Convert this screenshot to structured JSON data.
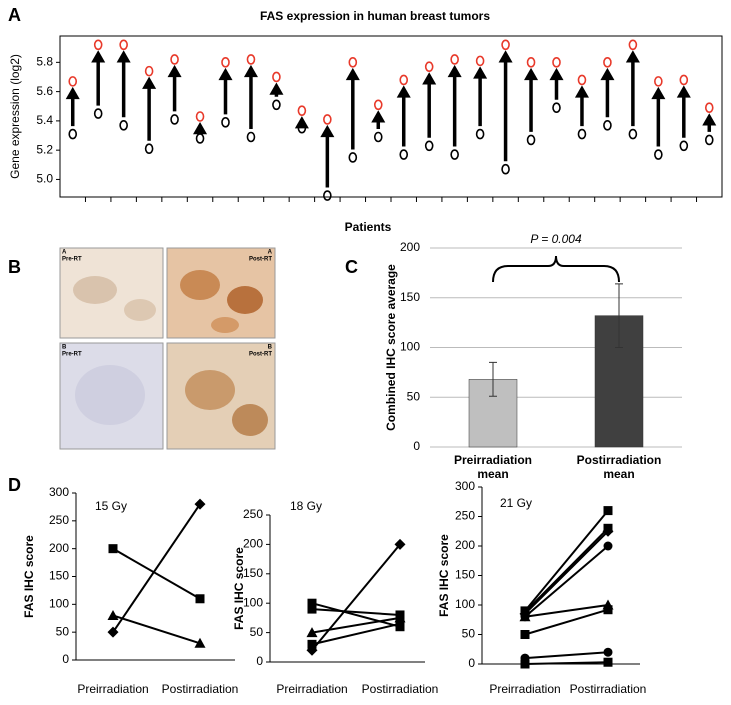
{
  "panel_letters": [
    "A",
    "B",
    "C",
    "D"
  ],
  "panel_b": {
    "images": [
      {
        "letter": "A",
        "label": "Pre-RT"
      },
      {
        "letter": "A",
        "label": "Post-RT"
      },
      {
        "letter": "B",
        "label": "Pre-RT"
      },
      {
        "letter": "B",
        "label": "Post-RT"
      }
    ]
  },
  "chart_data": [
    {
      "type": "arrow",
      "title": "FAS expression in human breast tumors",
      "y_label": "Gene expression (log2)",
      "x_label": "Patients",
      "categories": [
        null,
        null,
        null,
        null,
        null,
        null,
        null,
        null,
        null,
        null,
        null,
        null,
        null,
        null,
        null,
        null,
        null,
        null,
        null,
        null,
        null,
        null,
        null,
        null,
        null,
        null
      ],
      "series": [
        {
          "color": "#000000",
          "values": [
            5.31,
            5.45,
            5.37,
            5.21,
            5.41,
            5.28,
            5.39,
            5.29,
            5.51,
            5.35,
            4.89,
            5.15,
            5.29,
            5.17,
            5.23,
            5.17,
            5.31,
            5.07,
            5.27,
            5.49,
            5.31,
            5.37,
            5.31,
            5.17,
            5.23,
            5.27
          ]
        },
        {
          "color": "#e8392a",
          "values": [
            5.67,
            5.92,
            5.92,
            5.74,
            5.82,
            5.43,
            5.8,
            5.82,
            5.7,
            5.47,
            5.41,
            5.8,
            5.51,
            5.68,
            5.77,
            5.82,
            5.81,
            5.92,
            5.8,
            5.8,
            5.68,
            5.8,
            5.92,
            5.67,
            5.68,
            5.49
          ]
        }
      ],
      "ylim": [
        4.88,
        5.98
      ],
      "yticks": [
        {
          "value": 5.0,
          "label": "5.0"
        },
        5.2,
        5.4,
        5.6,
        5.8
      ],
      "grid": false
    },
    {
      "type": "bar",
      "y_label": "Combined IHC score average",
      "annotation": "P = 0.004",
      "categories": [
        "Preirradiation mean",
        "Postirradiation mean"
      ],
      "values": [
        68,
        132
      ],
      "errors": [
        17,
        32
      ],
      "colors": [
        "#bfbfbf",
        "#404040"
      ],
      "ylim": [
        0,
        200
      ],
      "yticks": [
        0,
        50,
        100,
        150,
        200
      ],
      "grid": true
    },
    {
      "type": "line",
      "title": "15 Gy",
      "y_label": "FAS IHC score",
      "categories": [
        "Preirradiation",
        "Postirradiation"
      ],
      "series": [
        {
          "color": "#000000",
          "marker": "square",
          "values": [
            200,
            110
          ]
        },
        {
          "color": "#000000",
          "marker": "triangle",
          "values": [
            80,
            30
          ]
        },
        {
          "color": "#000000",
          "marker": "diamond",
          "values": [
            50,
            280
          ]
        }
      ],
      "ylim": [
        0,
        300
      ],
      "yticks": [
        0,
        50,
        100,
        150,
        200,
        250,
        300
      ],
      "grid": false
    },
    {
      "type": "line",
      "title": "18 Gy",
      "y_label": "FAS IHC score",
      "categories": [
        "Preirradiation",
        "Postirradiation"
      ],
      "series": [
        {
          "color": "#000000",
          "marker": "square",
          "values": [
            100,
            60
          ]
        },
        {
          "color": "#000000",
          "marker": "square",
          "values": [
            90,
            80
          ]
        },
        {
          "color": "#000000",
          "marker": "triangle",
          "values": [
            50,
            75
          ]
        },
        {
          "color": "#000000",
          "marker": "square",
          "values": [
            30,
            65
          ]
        },
        {
          "color": "#000000",
          "marker": "diamond",
          "values": [
            20,
            200
          ]
        }
      ],
      "ylim": [
        0,
        250
      ],
      "yticks": [
        0,
        50,
        100,
        150,
        200,
        250
      ],
      "grid": false
    },
    {
      "type": "line",
      "title": "21 Gy",
      "y_label": "FAS IHC score",
      "categories": [
        "Preirradiation",
        "Postirradiation"
      ],
      "series": [
        {
          "color": "#000000",
          "marker": "square",
          "values": [
            90,
            260
          ]
        },
        {
          "color": "#000000",
          "marker": "square",
          "values": [
            88,
            230
          ]
        },
        {
          "color": "#000000",
          "marker": "diamond",
          "values": [
            85,
            225
          ]
        },
        {
          "color": "#000000",
          "marker": "circle",
          "values": [
            80,
            200
          ]
        },
        {
          "color": "#000000",
          "marker": "triangle",
          "values": [
            80,
            100
          ]
        },
        {
          "color": "#000000",
          "marker": "square",
          "values": [
            50,
            92
          ]
        },
        {
          "color": "#000000",
          "marker": "circle",
          "values": [
            10,
            20
          ]
        },
        {
          "color": "#000000",
          "marker": "square",
          "values": [
            0,
            3
          ]
        }
      ],
      "ylim": [
        0,
        300
      ],
      "yticks": [
        0,
        50,
        100,
        150,
        200,
        250,
        300
      ],
      "grid": false
    }
  ]
}
